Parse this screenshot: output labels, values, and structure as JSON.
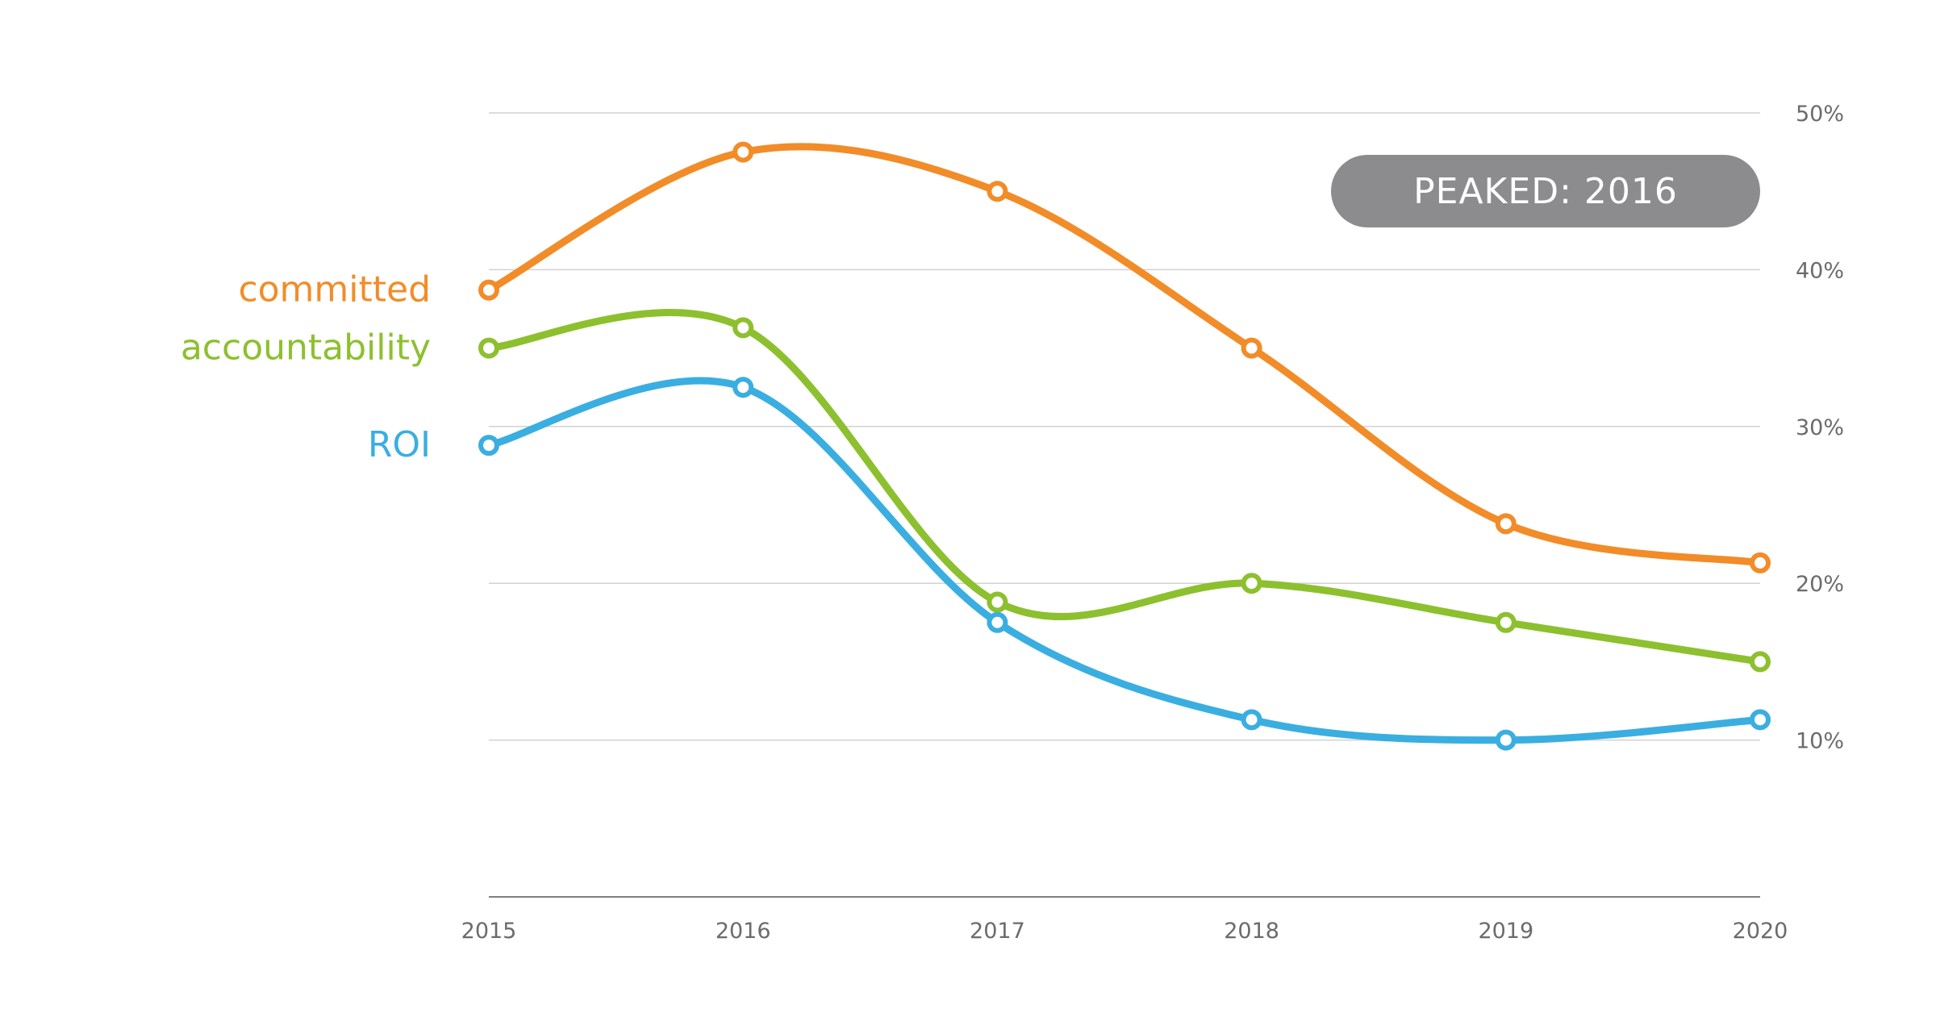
{
  "chart_data": {
    "type": "line",
    "x": [
      "2015",
      "2016",
      "2017",
      "2018",
      "2019",
      "2020"
    ],
    "ylim": [
      0,
      50
    ],
    "yticks": [
      10,
      20,
      30,
      40,
      50
    ],
    "ytick_labels": [
      "10%",
      "20%",
      "30%",
      "40%",
      "50%"
    ],
    "grid": true,
    "y_axis_position": "right",
    "smooth": true,
    "series": [
      {
        "name": "committed",
        "color": "#F28C28",
        "values": [
          38.7,
          47.5,
          45.0,
          35.0,
          23.8,
          21.3
        ]
      },
      {
        "name": "accountability",
        "color": "#8DC02E",
        "values": [
          35.0,
          36.3,
          18.8,
          20.0,
          17.5,
          15.0
        ]
      },
      {
        "name": "ROI",
        "color": "#3AAEE0",
        "values": [
          28.8,
          32.5,
          17.5,
          11.3,
          10.0,
          11.3
        ]
      }
    ],
    "annotation": {
      "text": "PEAKED: 2016",
      "color": "#8C8C8E"
    }
  }
}
